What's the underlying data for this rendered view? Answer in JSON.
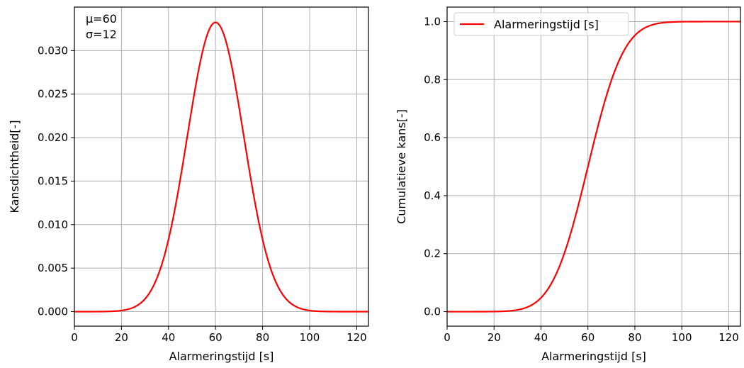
{
  "chart_data": [
    {
      "type": "line",
      "xlabel": "Alarmeringstijd [s]",
      "ylabel": "Kansdichtheid[-]",
      "xlim": [
        0,
        125
      ],
      "ylim": [
        -0.00167,
        0.035
      ],
      "xticks": [
        0,
        20,
        40,
        60,
        80,
        100,
        120
      ],
      "yticks": [
        0.0,
        0.005,
        0.01,
        0.015,
        0.02,
        0.025,
        0.03
      ],
      "ytick_labels": [
        "0.000",
        "0.005",
        "0.010",
        "0.015",
        "0.020",
        "0.025",
        "0.030"
      ],
      "grid": true,
      "annotations": [
        "μ=60",
        "σ=12"
      ],
      "series": [
        {
          "color": "#ff0000",
          "x": [
            0,
            10,
            20,
            25,
            30,
            35,
            40,
            45,
            50,
            55,
            60,
            65,
            70,
            75,
            80,
            85,
            90,
            95,
            100,
            110,
            120,
            125
          ],
          "y": [
            1e-05,
            9e-05,
            0.00128,
            0.00119,
            0.00292,
            0.0076,
            0.0083,
            0.01514,
            0.02359,
            0.03051,
            0.03324,
            0.03051,
            0.02359,
            0.01514,
            0.0083,
            0.00383,
            0.00146,
            0.00047,
            0.00013,
            1e-05,
            0.0,
            0.0
          ]
        }
      ]
    },
    {
      "type": "line",
      "xlabel": "Alarmeringstijd [s]",
      "ylabel": "Cumulatieve kans[-]",
      "xlim": [
        0,
        125
      ],
      "ylim": [
        -0.05,
        1.05
      ],
      "xticks": [
        0,
        20,
        40,
        60,
        80,
        100,
        120
      ],
      "yticks": [
        0.0,
        0.2,
        0.4,
        0.6,
        0.8,
        1.0
      ],
      "ytick_labels": [
        "0.0",
        "0.2",
        "0.4",
        "0.6",
        "0.8",
        "1.0"
      ],
      "grid": true,
      "legend": "top-left",
      "series": [
        {
          "name": "Alarmeringstijd [s]",
          "color": "#ff0000",
          "x": [
            0,
            10,
            20,
            25,
            30,
            35,
            40,
            45,
            50,
            55,
            60,
            65,
            70,
            75,
            80,
            85,
            90,
            95,
            100,
            110,
            120,
            125
          ],
          "y": [
            0.0,
            0.0,
            0.0004,
            0.0018,
            0.0062,
            0.0188,
            0.0478,
            0.1056,
            0.2023,
            0.3385,
            0.5,
            0.6615,
            0.7977,
            0.8944,
            0.9522,
            0.9812,
            0.9938,
            0.9982,
            0.9996,
            1.0,
            1.0,
            1.0
          ]
        }
      ]
    }
  ]
}
